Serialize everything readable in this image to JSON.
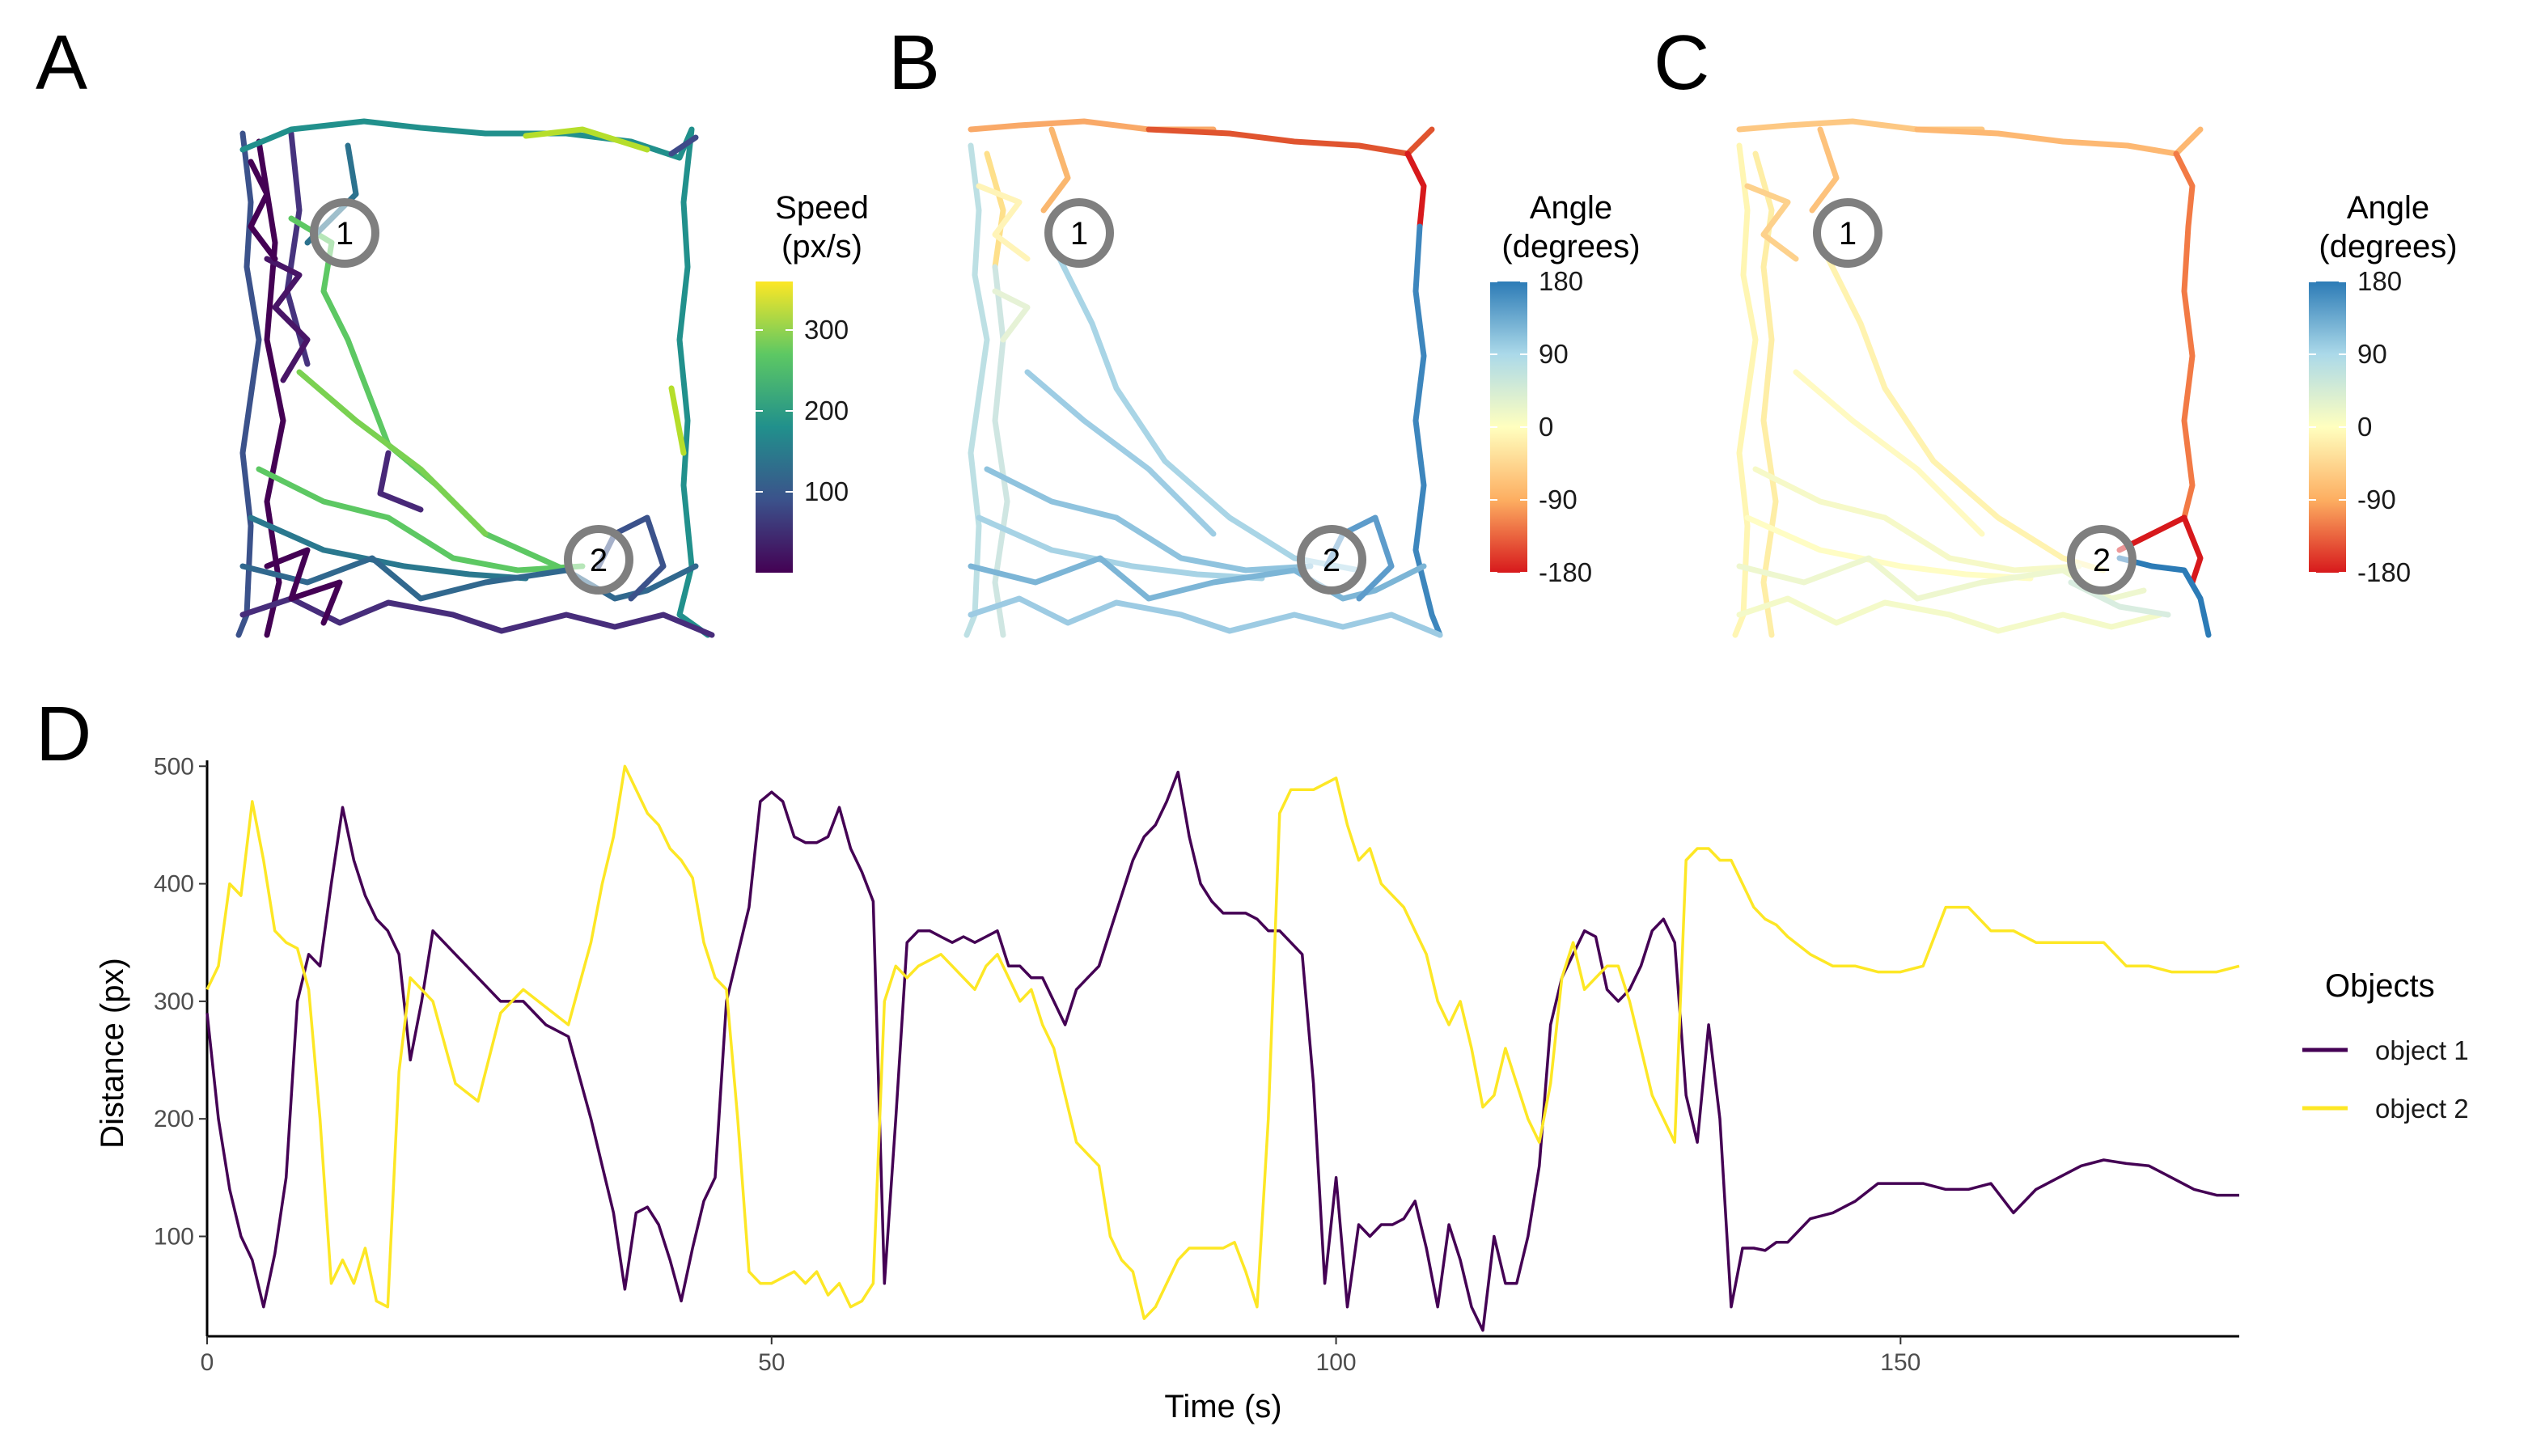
{
  "panels": {
    "A": {
      "letter": "A",
      "legend_title": [
        "Speed",
        "(px/s)"
      ],
      "legend_ticks": [
        {
          "label": "300",
          "value": 300
        },
        {
          "label": "200",
          "value": 200
        },
        {
          "label": "100",
          "value": 100
        }
      ],
      "legend_range": [
        0,
        360
      ],
      "palette": "viridis",
      "markers": [
        "1",
        "2"
      ]
    },
    "B": {
      "letter": "B",
      "legend_title": [
        "Angle",
        "(degrees)"
      ],
      "legend_ticks": [
        {
          "label": "180",
          "value": 180
        },
        {
          "label": "90",
          "value": 90
        },
        {
          "label": "0",
          "value": 0
        },
        {
          "label": "-90",
          "value": -90
        },
        {
          "label": "-180",
          "value": -180
        }
      ],
      "legend_range": [
        -180,
        180
      ],
      "palette": "spectral",
      "markers": [
        "1",
        "2"
      ]
    },
    "C": {
      "letter": "C",
      "legend_title": [
        "Angle",
        "(degrees)"
      ],
      "legend_ticks": [
        {
          "label": "180",
          "value": 180
        },
        {
          "label": "90",
          "value": 90
        },
        {
          "label": "0",
          "value": 0
        },
        {
          "label": "-90",
          "value": -90
        },
        {
          "label": "-180",
          "value": -180
        }
      ],
      "legend_range": [
        -180,
        180
      ],
      "palette": "spectral",
      "markers": [
        "1",
        "2"
      ]
    },
    "D": {
      "letter": "D"
    }
  },
  "colors": {
    "object1": "#440154",
    "object2": "#FDE725",
    "marker_ring": "#7f7f7f",
    "viridis": [
      "#440154",
      "#3B528B",
      "#21908C",
      "#5DC863",
      "#FDE725"
    ],
    "spectral": [
      "#D7191C",
      "#FDAE61",
      "#FFFFBF",
      "#ABD9E9",
      "#2C7BB6"
    ]
  },
  "chart_data": [
    {
      "type": "line",
      "panel": "D",
      "xlabel": "Time (s)",
      "ylabel": "Distance (px)",
      "xlim": [
        0,
        180
      ],
      "ylim": [
        15,
        505
      ],
      "x_ticks": [
        0,
        50,
        100,
        150
      ],
      "y_ticks": [
        100,
        200,
        300,
        400,
        500
      ],
      "legend_title": "Objects",
      "legend_position": "right",
      "series": [
        {
          "name": "object 1",
          "color": "#440154",
          "x": [
            0,
            1,
            2,
            3,
            4,
            5,
            6,
            7,
            8,
            9,
            10,
            11,
            12,
            13,
            14,
            15,
            16,
            17,
            18,
            19,
            20,
            22,
            24,
            26,
            28,
            30,
            32,
            34,
            35,
            36,
            37,
            38,
            39,
            40,
            41,
            42,
            43,
            44,
            45,
            46,
            47,
            48,
            49,
            50,
            51,
            52,
            53,
            54,
            55,
            56,
            57,
            58,
            59,
            60,
            61,
            62,
            63,
            64,
            65,
            66,
            67,
            68,
            69,
            70,
            71,
            72,
            73,
            74,
            75,
            76,
            77,
            78,
            79,
            80,
            81,
            82,
            83,
            84,
            85,
            86,
            87,
            88,
            89,
            90,
            91,
            92,
            93,
            94,
            95,
            96,
            97,
            98,
            99,
            100,
            101,
            102,
            103,
            104,
            105,
            106,
            107,
            108,
            109,
            110,
            111,
            112,
            113,
            114,
            115,
            116,
            117,
            118,
            119,
            120,
            121,
            122,
            123,
            124,
            125,
            126,
            127,
            128,
            129,
            130,
            131,
            132,
            133,
            134,
            135,
            136,
            137,
            138,
            139,
            140,
            142,
            144,
            146,
            148,
            150,
            152,
            154,
            156,
            158,
            160,
            162,
            164,
            166,
            168,
            170,
            172,
            174,
            176,
            178,
            180
          ],
          "y": [
            290,
            200,
            140,
            100,
            80,
            40,
            85,
            150,
            300,
            340,
            330,
            400,
            465,
            420,
            390,
            370,
            360,
            340,
            250,
            300,
            360,
            340,
            320,
            300,
            300,
            280,
            270,
            200,
            160,
            120,
            55,
            120,
            125,
            110,
            80,
            45,
            90,
            130,
            150,
            300,
            340,
            380,
            470,
            478,
            470,
            440,
            435,
            435,
            440,
            465,
            430,
            410,
            385,
            60,
            200,
            350,
            360,
            360,
            355,
            350,
            355,
            350,
            355,
            360,
            330,
            330,
            320,
            320,
            300,
            280,
            310,
            320,
            330,
            360,
            390,
            420,
            440,
            450,
            470,
            495,
            440,
            400,
            385,
            375,
            375,
            375,
            370,
            360,
            360,
            350,
            340,
            230,
            60,
            150,
            40,
            110,
            100,
            110,
            110,
            115,
            130,
            90,
            40,
            110,
            80,
            40,
            20,
            100,
            60,
            60,
            100,
            160,
            280,
            320,
            340,
            360,
            355,
            310,
            300,
            310,
            330,
            360,
            370,
            350,
            220,
            180,
            280,
            200,
            40,
            90,
            90,
            88,
            95,
            95,
            115,
            120,
            130,
            145,
            145,
            145,
            140,
            140,
            145,
            120,
            140,
            150,
            160,
            165,
            162,
            160,
            150,
            140,
            135,
            135
          ]
        },
        {
          "name": "object 2",
          "color": "#FDE725",
          "x": [
            0,
            1,
            2,
            3,
            4,
            5,
            6,
            7,
            8,
            9,
            10,
            11,
            12,
            13,
            14,
            15,
            16,
            17,
            18,
            19,
            20,
            22,
            24,
            26,
            28,
            30,
            32,
            34,
            35,
            36,
            37,
            38,
            39,
            40,
            41,
            42,
            43,
            44,
            45,
            46,
            47,
            48,
            49,
            50,
            51,
            52,
            53,
            54,
            55,
            56,
            57,
            58,
            59,
            60,
            61,
            62,
            63,
            64,
            65,
            66,
            67,
            68,
            69,
            70,
            71,
            72,
            73,
            74,
            75,
            76,
            77,
            78,
            79,
            80,
            81,
            82,
            83,
            84,
            85,
            86,
            87,
            88,
            89,
            90,
            91,
            92,
            93,
            94,
            95,
            96,
            97,
            98,
            99,
            100,
            101,
            102,
            103,
            104,
            105,
            106,
            107,
            108,
            109,
            110,
            111,
            112,
            113,
            114,
            115,
            116,
            117,
            118,
            119,
            120,
            121,
            122,
            123,
            124,
            125,
            126,
            127,
            128,
            129,
            130,
            131,
            132,
            133,
            134,
            135,
            136,
            137,
            138,
            139,
            140,
            142,
            144,
            146,
            148,
            150,
            152,
            154,
            156,
            158,
            160,
            162,
            164,
            166,
            168,
            170,
            172,
            174,
            176,
            178,
            180
          ],
          "y": [
            310,
            330,
            400,
            390,
            470,
            420,
            360,
            350,
            345,
            310,
            200,
            60,
            80,
            60,
            90,
            45,
            40,
            240,
            320,
            310,
            300,
            230,
            215,
            290,
            310,
            295,
            280,
            350,
            400,
            440,
            500,
            480,
            460,
            450,
            430,
            420,
            405,
            350,
            320,
            310,
            200,
            70,
            60,
            60,
            65,
            70,
            60,
            70,
            50,
            60,
            40,
            45,
            60,
            300,
            330,
            320,
            330,
            335,
            340,
            330,
            320,
            310,
            330,
            340,
            320,
            300,
            310,
            280,
            260,
            220,
            180,
            170,
            160,
            100,
            80,
            70,
            30,
            40,
            60,
            80,
            90,
            90,
            90,
            90,
            95,
            70,
            40,
            200,
            460,
            480,
            480,
            480,
            485,
            490,
            450,
            420,
            430,
            400,
            390,
            380,
            360,
            340,
            300,
            280,
            300,
            260,
            210,
            220,
            260,
            230,
            200,
            180,
            230,
            320,
            350,
            310,
            320,
            330,
            330,
            300,
            260,
            220,
            200,
            180,
            420,
            430,
            430,
            420,
            420,
            400,
            380,
            370,
            365,
            355,
            340,
            330,
            330,
            325,
            325,
            330,
            380,
            380,
            360,
            360,
            350,
            350,
            350,
            350,
            330,
            330,
            325,
            325,
            325,
            330
          ]
        }
      ]
    }
  ]
}
